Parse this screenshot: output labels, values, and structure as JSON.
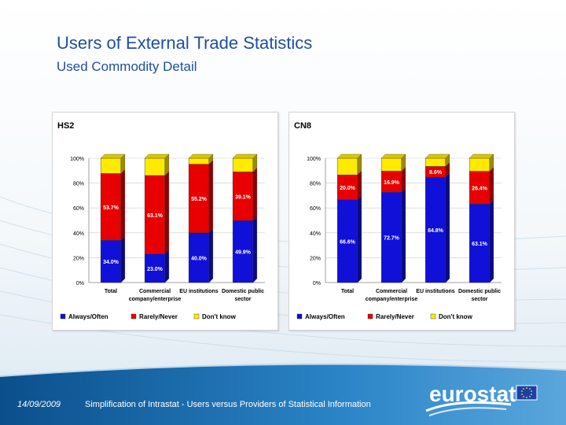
{
  "slide": {
    "title": "Users of External Trade Statistics",
    "subtitle": "Used Commodity Detail",
    "footer_date": "14/09/2009",
    "footer_text": "Simplification of Intrastat - Users versus Providers of Statistical Information",
    "logo_text": "eurostat"
  },
  "colors": {
    "blue": "#1010d8",
    "red": "#e80000",
    "yellow": "#ffea00",
    "title": "#1f4e9e",
    "footer_bg": "#1a6bb0"
  },
  "chart_data": [
    {
      "type": "bar",
      "stacked": true,
      "percent": true,
      "title": "HS2",
      "categories": [
        "Total",
        "Commercial company/enterprise",
        "EU institutions",
        "Domestic public sector"
      ],
      "category_labels": [
        [
          "Total"
        ],
        [
          "Commercial",
          "company/enterprise"
        ],
        [
          "EU institutions"
        ],
        [
          "Domestic public",
          "sector"
        ]
      ],
      "ylim": [
        0,
        100
      ],
      "yticks": [
        "0%",
        "20%",
        "40%",
        "60%",
        "80%",
        "100%"
      ],
      "legend_position": "bottom",
      "series": [
        {
          "name": "Always/Often",
          "color": "#1010d8",
          "values": [
            34.0,
            23.0,
            40.0,
            49.9
          ],
          "labels": [
            "34.0%",
            "23.0%",
            "40.0%",
            "49.9%"
          ]
        },
        {
          "name": "Rarely/Never",
          "color": "#e80000",
          "values": [
            53.7,
            63.1,
            55.2,
            39.1
          ],
          "labels": [
            "53.7%",
            "63.1%",
            "55.2%",
            "39.1%"
          ]
        },
        {
          "name": "Don't know",
          "color": "#ffea00",
          "values": [
            12.3,
            13.9,
            4.8,
            11.0
          ],
          "labels": [
            "",
            "",
            "",
            ""
          ]
        }
      ]
    },
    {
      "type": "bar",
      "stacked": true,
      "percent": true,
      "title": "CN8",
      "categories": [
        "Total",
        "Commercial company/enterprise",
        "EU institutions",
        "Domestic public sector"
      ],
      "category_labels": [
        [
          "Total"
        ],
        [
          "Commercial",
          "company/enterprise"
        ],
        [
          "EU institutions"
        ],
        [
          "Domestic public",
          "sector"
        ]
      ],
      "ylim": [
        0,
        100
      ],
      "yticks": [
        "0%",
        "20%",
        "40%",
        "60%",
        "80%",
        "100%"
      ],
      "legend_position": "bottom",
      "series": [
        {
          "name": "Always/Often",
          "color": "#1010d8",
          "values": [
            66.6,
            72.7,
            84.8,
            63.1
          ],
          "labels": [
            "66.6%",
            "72.7%",
            "84.8%",
            "63.1%"
          ]
        },
        {
          "name": "Rarely/Never",
          "color": "#e80000",
          "values": [
            20.0,
            16.9,
            8.6,
            26.4
          ],
          "labels": [
            "20.0%",
            "16.9%",
            "8.6%",
            "26.4%"
          ]
        },
        {
          "name": "Don't know",
          "color": "#ffea00",
          "values": [
            13.4,
            10.4,
            6.6,
            10.5
          ],
          "labels": [
            "",
            "",
            "",
            ""
          ]
        }
      ]
    }
  ]
}
